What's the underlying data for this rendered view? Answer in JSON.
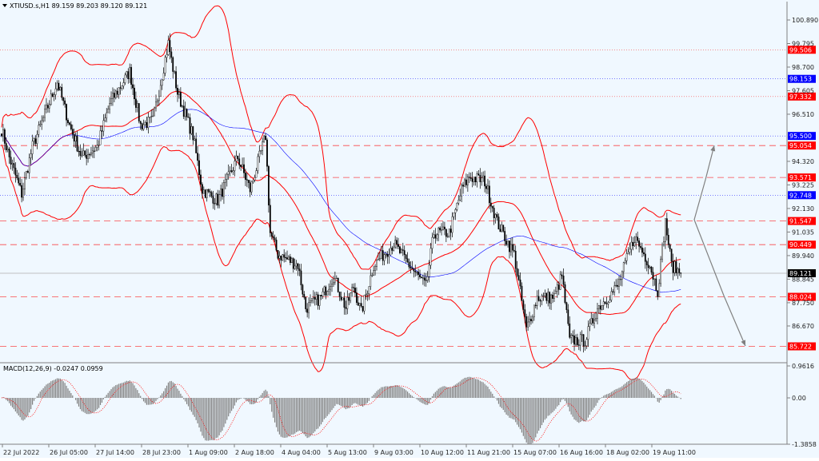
{
  "header": {
    "symbol_info": "XTIUSD.s,H1  89.159 89.203 89.120 89.121"
  },
  "macd_label": "MACD(12,26,9) -0.0247 0.0959",
  "colors": {
    "background": "#f0f8ff",
    "candle": "#000000",
    "bollinger": "#ff0000",
    "ma": "#0000ff",
    "red_label": "#ff0000",
    "blue_label": "#0000ff",
    "bid_label": "#000000",
    "histogram": "#808080",
    "signal": "#ff0000",
    "arrow": "#808080"
  },
  "chart_data": {
    "type": "candlestick",
    "symbol": "XTIUSD.s",
    "timeframe": "H1",
    "ohlc_last": {
      "open": 89.159,
      "high": 89.203,
      "low": 89.12,
      "close": 89.121
    },
    "ylim": [
      85.3,
      101.4
    ],
    "price_ticks": [
      "100.890",
      "99.795",
      "98.700",
      "97.605",
      "96.510",
      "94.320",
      "93.225",
      "92.130",
      "91.035",
      "89.940",
      "88.845",
      "87.750",
      "86.670"
    ],
    "time_ticks": [
      "22 Jul 2022",
      "26 Jul 05:00",
      "27 Jul 14:00",
      "28 Jul 23:00",
      "1 Aug 09:00",
      "2 Aug 18:00",
      "4 Aug 04:00",
      "5 Aug 13:00",
      "9 Aug 03:00",
      "10 Aug 12:00",
      "11 Aug 21:00",
      "15 Aug 07:00",
      "16 Aug 16:00",
      "18 Aug 02:00",
      "19 Aug 11:00"
    ],
    "close_path": [
      [
        0,
        95.8
      ],
      [
        5,
        94.5
      ],
      [
        13,
        92.8
      ],
      [
        20,
        95
      ],
      [
        36,
        98
      ],
      [
        44,
        96
      ],
      [
        52,
        94.5
      ],
      [
        62,
        95
      ],
      [
        70,
        97
      ],
      [
        83,
        98.5
      ],
      [
        90,
        96
      ],
      [
        98,
        96.2
      ],
      [
        108,
        99.8
      ],
      [
        114,
        97.5
      ],
      [
        124,
        95.5
      ],
      [
        130,
        93
      ],
      [
        140,
        92.5
      ],
      [
        153,
        94.5
      ],
      [
        161,
        93
      ],
      [
        171,
        95.5
      ],
      [
        174,
        91
      ],
      [
        179,
        90
      ],
      [
        192,
        89.5
      ],
      [
        197,
        87.5
      ],
      [
        207,
        88
      ],
      [
        215,
        89
      ],
      [
        223,
        87.5
      ],
      [
        228,
        88.5
      ],
      [
        233,
        87.3
      ],
      [
        241,
        89.5
      ],
      [
        254,
        90.5
      ],
      [
        264,
        89.5
      ],
      [
        275,
        88.5
      ],
      [
        280,
        91
      ],
      [
        290,
        91
      ],
      [
        298,
        93
      ],
      [
        303,
        93.6
      ],
      [
        313,
        93.4
      ],
      [
        321,
        91.5
      ],
      [
        332,
        90
      ],
      [
        340,
        86.5
      ],
      [
        347,
        88
      ],
      [
        358,
        88
      ],
      [
        363,
        89
      ],
      [
        368,
        86
      ],
      [
        378,
        86
      ],
      [
        386,
        87.5
      ],
      [
        399,
        88.5
      ],
      [
        410,
        90.8
      ],
      [
        420,
        89.5
      ],
      [
        425,
        88.3
      ],
      [
        430,
        91.5
      ],
      [
        434,
        89.5
      ],
      [
        440,
        89.121
      ]
    ],
    "levels": [
      {
        "price": "99.506",
        "style": "dotted",
        "color": "red"
      },
      {
        "price": "98.153",
        "style": "dotted",
        "color": "blue"
      },
      {
        "price": "97.332",
        "style": "dotted",
        "color": "red"
      },
      {
        "price": "95.500",
        "style": "dotted",
        "color": "blue"
      },
      {
        "price": "95.054",
        "style": "dashed",
        "color": "red"
      },
      {
        "price": "93.571",
        "style": "dashed",
        "color": "red"
      },
      {
        "price": "92.748",
        "style": "dotted",
        "color": "blue"
      },
      {
        "price": "91.547",
        "style": "dashed",
        "color": "red"
      },
      {
        "price": "90.449",
        "style": "dashed",
        "color": "red"
      },
      {
        "price": "88.024",
        "style": "dashed",
        "color": "red"
      },
      {
        "price": "85.722",
        "style": "dashed",
        "color": "red"
      }
    ],
    "bid": "89.121",
    "indicators": {
      "bollinger": true,
      "moving_average": true
    },
    "macd": {
      "params": "12,26,9",
      "main": -0.0247,
      "signal": 0.0959,
      "ticks": [
        "0.9616",
        "0.00",
        "-1.3858"
      ],
      "ylim": [
        -1.3858,
        0.9616
      ]
    },
    "projection_arrows": [
      [
        "91.5",
        "95.0"
      ],
      [
        "91.5",
        "88.0",
        "85.7"
      ]
    ]
  }
}
